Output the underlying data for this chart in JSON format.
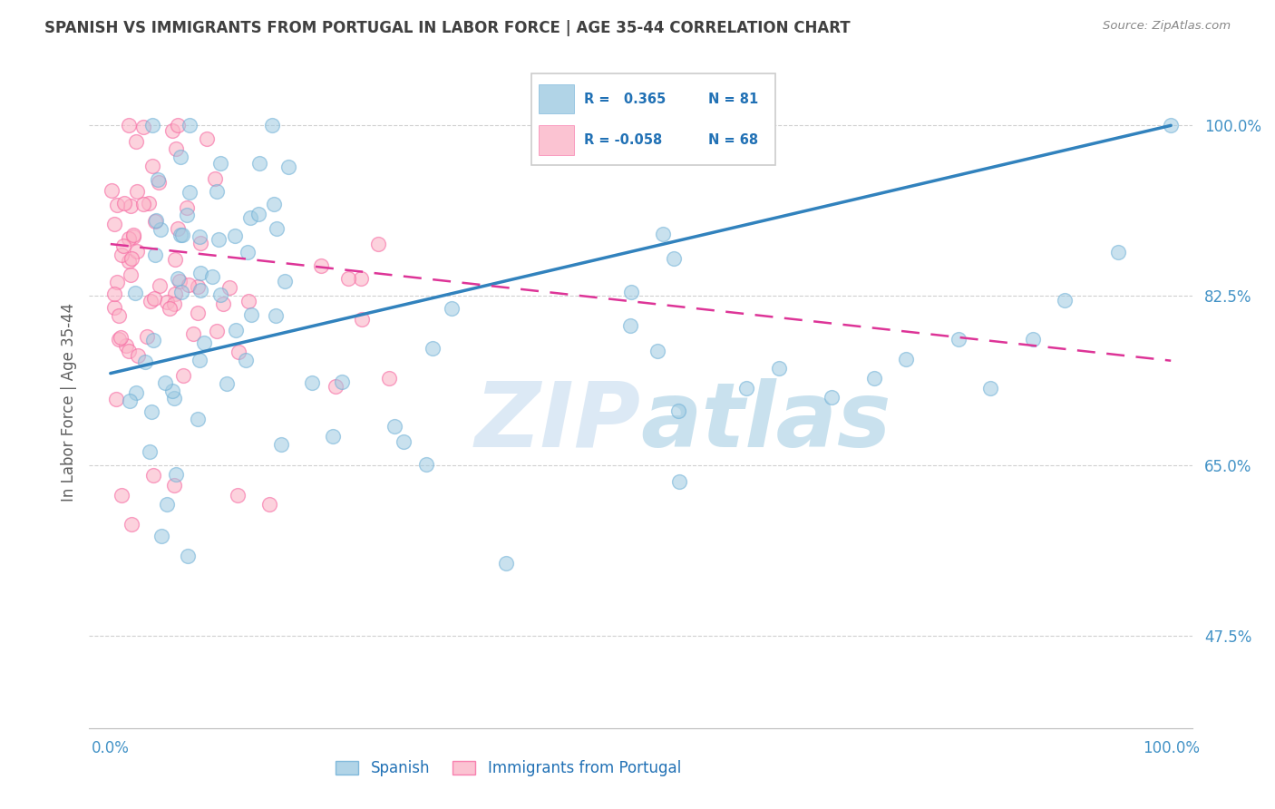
{
  "title": "SPANISH VS IMMIGRANTS FROM PORTUGAL IN LABOR FORCE | AGE 35-44 CORRELATION CHART",
  "source": "Source: ZipAtlas.com",
  "ylabel": "In Labor Force | Age 35-44",
  "R_spanish": 0.365,
  "N_spanish": 81,
  "R_portuguese": -0.058,
  "N_portuguese": 68,
  "blue_color": "#9ecae1",
  "blue_edge_color": "#6baed6",
  "pink_color": "#fbb4c7",
  "pink_edge_color": "#f768a1",
  "blue_line_color": "#3182bd",
  "pink_line_color": "#dd3497",
  "watermark_zip": "#c6dbef",
  "watermark_atlas": "#9ecae1",
  "background_color": "#ffffff",
  "grid_color": "#d0d0d0",
  "title_color": "#404040",
  "tick_color": "#4292c6",
  "source_color": "#888888",
  "ylabel_color": "#606060",
  "legend_label_color": "#2171b5",
  "yticks": [
    0.475,
    0.65,
    0.825,
    1.0
  ],
  "ytick_labels": [
    "47.5%",
    "65.0%",
    "82.5%",
    "100.0%"
  ],
  "xticks": [
    0.0,
    0.25,
    0.5,
    0.75,
    1.0
  ],
  "xtick_labels": [
    "0.0%",
    "",
    "",
    "",
    "100.0%"
  ],
  "xlim": [
    -0.02,
    1.02
  ],
  "ylim": [
    0.38,
    1.05
  ],
  "blue_trend_x": [
    0.0,
    1.0
  ],
  "blue_trend_y": [
    0.745,
    1.0
  ],
  "pink_trend_x": [
    0.0,
    1.0
  ],
  "pink_trend_y": [
    0.878,
    0.758
  ]
}
